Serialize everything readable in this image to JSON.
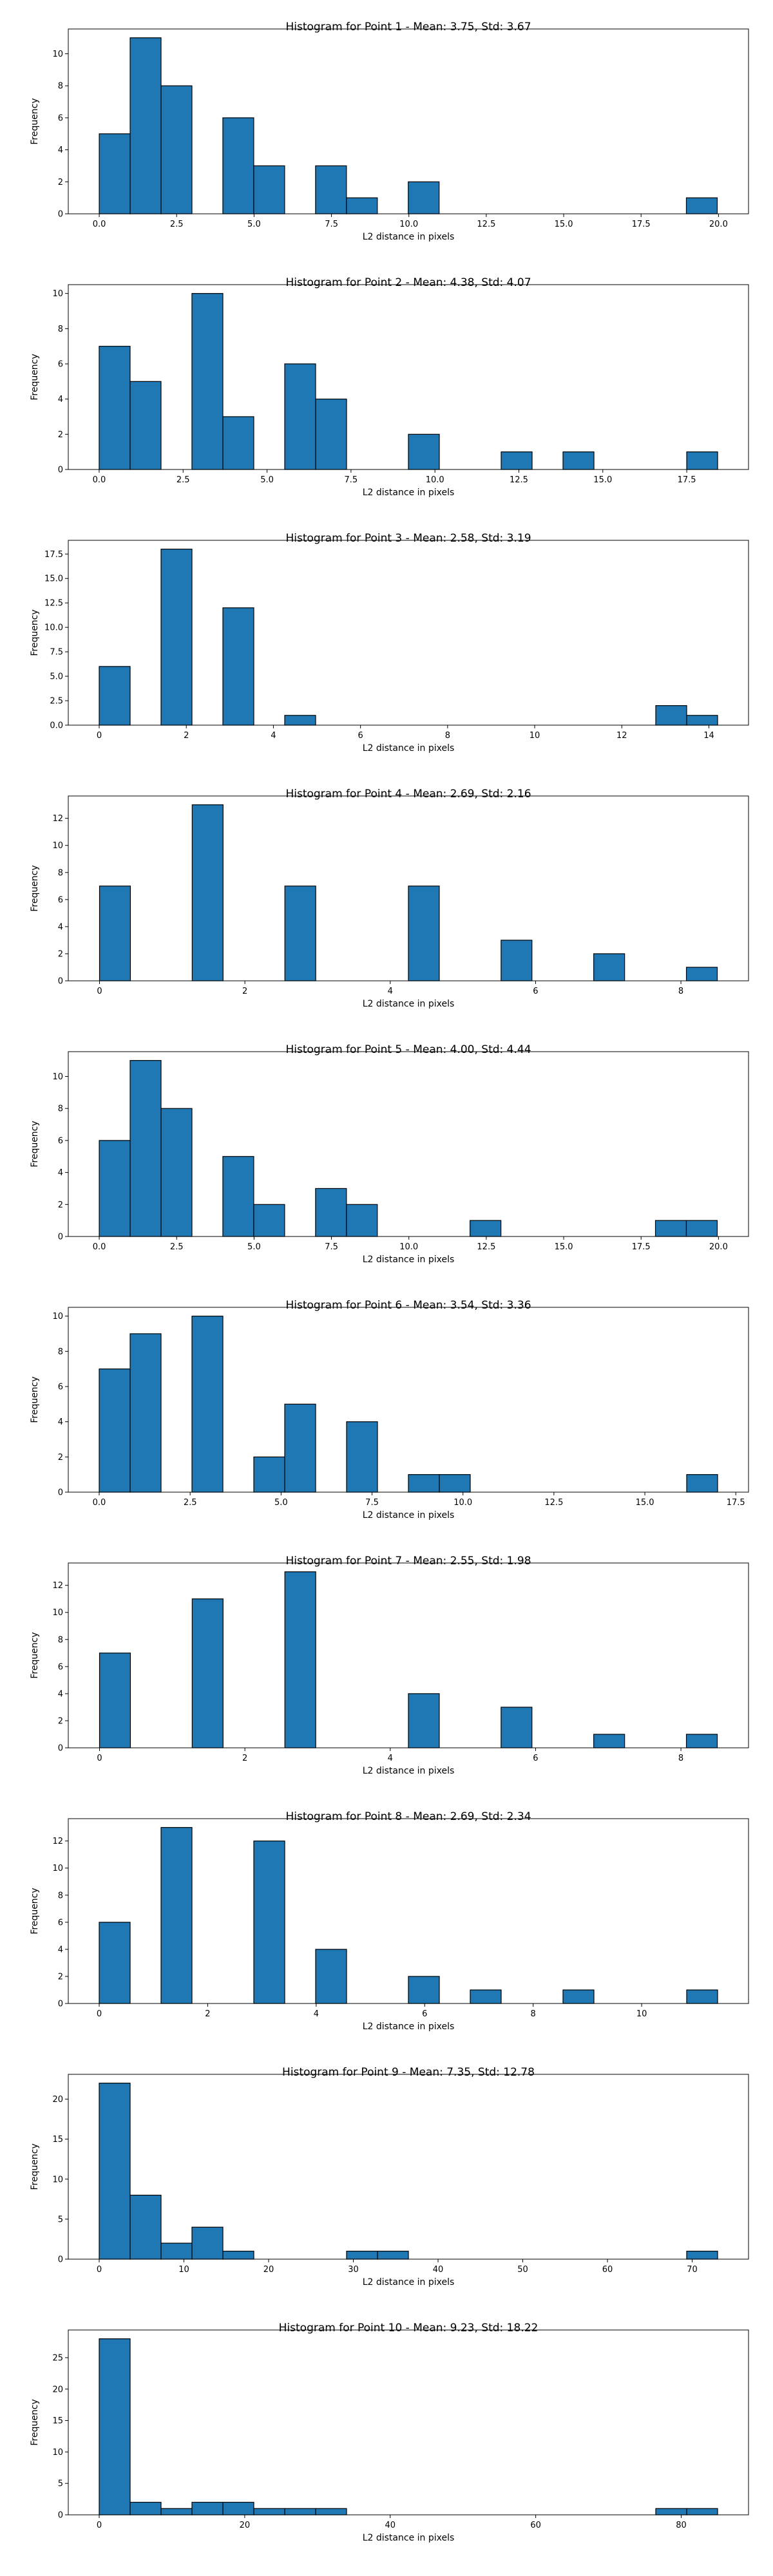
{
  "colors": {
    "bar_fill": "#1f77b4",
    "bar_edge": "#000000",
    "axes": "#000000",
    "background": "#ffffff"
  },
  "chart_data": [
    {
      "type": "bar",
      "title": "Histogram for Point 1 - Mean: 3.75, Std: 3.67",
      "xlabel": "L2 distance in pixels",
      "ylabel": "Frequency",
      "xlim": [
        -1.0,
        20.97
      ],
      "ylim": [
        0,
        11.55
      ],
      "xticks": [
        0.0,
        2.5,
        5.0,
        7.5,
        10.0,
        12.5,
        15.0,
        17.5,
        20.0
      ],
      "xtick_labels": [
        "0.0",
        "2.5",
        "5.0",
        "7.5",
        "10.0",
        "12.5",
        "15.0",
        "17.5",
        "20.0"
      ],
      "yticks": [
        0,
        2,
        4,
        6,
        8,
        10
      ],
      "ytick_labels": [
        "0",
        "2",
        "4",
        "6",
        "8",
        "10"
      ],
      "bin_edges": [
        0.0,
        0.998,
        1.996,
        2.994,
        3.992,
        4.99,
        5.988,
        6.986,
        7.984,
        8.982,
        9.98,
        10.978,
        11.976,
        12.974,
        13.972,
        14.97,
        15.968,
        16.966,
        17.964,
        18.962,
        19.96
      ],
      "values": [
        5,
        11,
        8,
        0,
        6,
        3,
        0,
        3,
        1,
        0,
        2,
        0,
        0,
        0,
        0,
        0,
        0,
        0,
        0,
        1
      ]
    },
    {
      "type": "bar",
      "title": "Histogram for Point 2 - Mean: 4.38, Std: 4.07",
      "xlabel": "L2 distance in pixels",
      "ylabel": "Frequency",
      "xlim": [
        -0.92,
        19.34
      ],
      "ylim": [
        0,
        10.5
      ],
      "xticks": [
        0.0,
        2.5,
        5.0,
        7.5,
        10.0,
        12.5,
        15.0,
        17.5
      ],
      "xtick_labels": [
        "0.0",
        "2.5",
        "5.0",
        "7.5",
        "10.0",
        "12.5",
        "15.0",
        "17.5"
      ],
      "yticks": [
        0,
        2,
        4,
        6,
        8,
        10
      ],
      "ytick_labels": [
        "0",
        "2",
        "4",
        "6",
        "8",
        "10"
      ],
      "bin_edges": [
        0.0,
        0.921,
        1.842,
        2.763,
        3.684,
        4.605,
        5.526,
        6.447,
        7.368,
        8.289,
        9.21,
        10.131,
        11.052,
        11.973,
        12.894,
        13.815,
        14.736,
        15.657,
        16.578,
        17.499,
        18.42
      ],
      "values": [
        7,
        5,
        0,
        10,
        3,
        0,
        6,
        4,
        0,
        0,
        2,
        0,
        0,
        1,
        0,
        1,
        0,
        0,
        0,
        1
      ]
    },
    {
      "type": "bar",
      "title": "Histogram for Point 3 - Mean: 2.58, Std: 3.19",
      "xlabel": "L2 distance in pixels",
      "ylabel": "Frequency",
      "xlim": [
        -0.71,
        14.91
      ],
      "ylim": [
        0,
        18.9
      ],
      "xticks": [
        0,
        2,
        4,
        6,
        8,
        10,
        12,
        14
      ],
      "xtick_labels": [
        "0",
        "2",
        "4",
        "6",
        "8",
        "10",
        "12",
        "14"
      ],
      "yticks": [
        0.0,
        2.5,
        5.0,
        7.5,
        10.0,
        12.5,
        15.0,
        17.5
      ],
      "ytick_labels": [
        "0.0",
        "2.5",
        "5.0",
        "7.5",
        "10.0",
        "12.5",
        "15.0",
        "17.5"
      ],
      "bin_edges": [
        0.0,
        0.71,
        1.42,
        2.13,
        2.84,
        3.55,
        4.26,
        4.97,
        5.68,
        6.39,
        7.1,
        7.81,
        8.52,
        9.23,
        9.94,
        10.65,
        11.36,
        12.07,
        12.78,
        13.49,
        14.2
      ],
      "values": [
        6,
        0,
        18,
        0,
        12,
        0,
        1,
        0,
        0,
        0,
        0,
        0,
        0,
        0,
        0,
        0,
        0,
        0,
        2,
        1
      ]
    },
    {
      "type": "bar",
      "title": "Histogram for Point 4 - Mean: 2.69, Std: 2.16",
      "xlabel": "L2 distance in pixels",
      "ylabel": "Frequency",
      "xlim": [
        -0.43,
        8.93
      ],
      "ylim": [
        0,
        13.65
      ],
      "xticks": [
        0,
        2,
        4,
        6,
        8
      ],
      "xtick_labels": [
        "0",
        "2",
        "4",
        "6",
        "8"
      ],
      "yticks": [
        0,
        2,
        4,
        6,
        8,
        10,
        12
      ],
      "ytick_labels": [
        "0",
        "2",
        "4",
        "6",
        "8",
        "10",
        "12"
      ],
      "bin_edges": [
        0.0,
        0.425,
        0.85,
        1.275,
        1.7,
        2.125,
        2.55,
        2.975,
        3.4,
        3.825,
        4.25,
        4.675,
        5.1,
        5.525,
        5.95,
        6.375,
        6.8,
        7.225,
        7.65,
        8.075,
        8.5
      ],
      "values": [
        7,
        0,
        0,
        13,
        0,
        0,
        7,
        0,
        0,
        0,
        7,
        0,
        0,
        3,
        0,
        0,
        2,
        0,
        0,
        1
      ]
    },
    {
      "type": "bar",
      "title": "Histogram for Point 5 - Mean: 4.00, Std: 4.44",
      "xlabel": "L2 distance in pixels",
      "ylabel": "Frequency",
      "xlim": [
        -1.0,
        20.97
      ],
      "ylim": [
        0,
        11.55
      ],
      "xticks": [
        0.0,
        2.5,
        5.0,
        7.5,
        10.0,
        12.5,
        15.0,
        17.5,
        20.0
      ],
      "xtick_labels": [
        "0.0",
        "2.5",
        "5.0",
        "7.5",
        "10.0",
        "12.5",
        "15.0",
        "17.5",
        "20.0"
      ],
      "yticks": [
        0,
        2,
        4,
        6,
        8,
        10
      ],
      "ytick_labels": [
        "0",
        "2",
        "4",
        "6",
        "8",
        "10"
      ],
      "bin_edges": [
        0.0,
        0.998,
        1.996,
        2.994,
        3.992,
        4.99,
        5.988,
        6.986,
        7.984,
        8.982,
        9.98,
        10.978,
        11.976,
        12.974,
        13.972,
        14.97,
        15.968,
        16.966,
        17.964,
        18.962,
        19.96
      ],
      "values": [
        6,
        11,
        8,
        0,
        5,
        2,
        0,
        3,
        2,
        0,
        0,
        0,
        1,
        0,
        0,
        0,
        0,
        0,
        1,
        1
      ]
    },
    {
      "type": "bar",
      "title": "Histogram for Point 6 - Mean: 3.54, Std: 3.36",
      "xlabel": "L2 distance in pixels",
      "ylabel": "Frequency",
      "xlim": [
        -0.85,
        17.85
      ],
      "ylim": [
        0,
        10.5
      ],
      "xticks": [
        0.0,
        2.5,
        5.0,
        7.5,
        10.0,
        12.5,
        15.0,
        17.5
      ],
      "xtick_labels": [
        "0.0",
        "2.5",
        "5.0",
        "7.5",
        "10.0",
        "12.5",
        "15.0",
        "17.5"
      ],
      "yticks": [
        0,
        2,
        4,
        6,
        8,
        10
      ],
      "ytick_labels": [
        "0",
        "2",
        "4",
        "6",
        "8",
        "10"
      ],
      "bin_edges": [
        0.0,
        0.85,
        1.7,
        2.55,
        3.4,
        4.25,
        5.1,
        5.95,
        6.8,
        7.65,
        8.5,
        9.35,
        10.2,
        11.05,
        11.9,
        12.75,
        13.6,
        14.45,
        15.3,
        16.15,
        17.0
      ],
      "values": [
        7,
        9,
        0,
        10,
        0,
        2,
        5,
        0,
        4,
        0,
        1,
        1,
        0,
        0,
        0,
        0,
        0,
        0,
        0,
        1
      ]
    },
    {
      "type": "bar",
      "title": "Histogram for Point 7 - Mean: 2.55, Std: 1.98",
      "xlabel": "L2 distance in pixels",
      "ylabel": "Frequency",
      "xlim": [
        -0.43,
        8.93
      ],
      "ylim": [
        0,
        13.65
      ],
      "xticks": [
        0,
        2,
        4,
        6,
        8
      ],
      "xtick_labels": [
        "0",
        "2",
        "4",
        "6",
        "8"
      ],
      "yticks": [
        0,
        2,
        4,
        6,
        8,
        10,
        12
      ],
      "ytick_labels": [
        "0",
        "2",
        "4",
        "6",
        "8",
        "10",
        "12"
      ],
      "bin_edges": [
        0.0,
        0.425,
        0.85,
        1.275,
        1.7,
        2.125,
        2.55,
        2.975,
        3.4,
        3.825,
        4.25,
        4.675,
        5.1,
        5.525,
        5.95,
        6.375,
        6.8,
        7.225,
        7.65,
        8.075,
        8.5
      ],
      "values": [
        7,
        0,
        0,
        11,
        0,
        0,
        13,
        0,
        0,
        0,
        4,
        0,
        0,
        3,
        0,
        0,
        1,
        0,
        0,
        1
      ]
    },
    {
      "type": "bar",
      "title": "Histogram for Point 8 - Mean: 2.69, Std: 2.34",
      "xlabel": "L2 distance in pixels",
      "ylabel": "Frequency",
      "xlim": [
        -0.57,
        11.97
      ],
      "ylim": [
        0,
        13.65
      ],
      "xticks": [
        0,
        2,
        4,
        6,
        8,
        10
      ],
      "xtick_labels": [
        "0",
        "2",
        "4",
        "6",
        "8",
        "10"
      ],
      "yticks": [
        0,
        2,
        4,
        6,
        8,
        10,
        12
      ],
      "ytick_labels": [
        "0",
        "2",
        "4",
        "6",
        "8",
        "10",
        "12"
      ],
      "bin_edges": [
        0.0,
        0.57,
        1.14,
        1.71,
        2.28,
        2.85,
        3.42,
        3.99,
        4.56,
        5.13,
        5.7,
        6.27,
        6.84,
        7.41,
        7.98,
        8.55,
        9.12,
        9.69,
        10.26,
        10.83,
        11.4
      ],
      "values": [
        6,
        0,
        13,
        0,
        0,
        12,
        0,
        4,
        0,
        0,
        2,
        0,
        1,
        0,
        0,
        1,
        0,
        0,
        0,
        1
      ]
    },
    {
      "type": "bar",
      "title": "Histogram for Point 9 - Mean: 7.35, Std: 12.78",
      "xlabel": "L2 distance in pixels",
      "ylabel": "Frequency",
      "xlim": [
        -3.65,
        76.65
      ],
      "ylim": [
        0,
        23.1
      ],
      "xticks": [
        0,
        10,
        20,
        30,
        40,
        50,
        60,
        70
      ],
      "xtick_labels": [
        "0",
        "10",
        "20",
        "30",
        "40",
        "50",
        "60",
        "70"
      ],
      "yticks": [
        0,
        5,
        10,
        15,
        20
      ],
      "ytick_labels": [
        "0",
        "5",
        "10",
        "15",
        "20"
      ],
      "bin_edges": [
        0.0,
        3.65,
        7.3,
        10.95,
        14.6,
        18.25,
        21.9,
        25.55,
        29.2,
        32.85,
        36.5,
        40.15,
        43.8,
        47.45,
        51.1,
        54.75,
        58.4,
        62.05,
        65.7,
        69.35,
        73.0
      ],
      "values": [
        22,
        8,
        2,
        4,
        1,
        0,
        0,
        0,
        1,
        1,
        0,
        0,
        0,
        0,
        0,
        0,
        0,
        0,
        0,
        1
      ]
    },
    {
      "type": "bar",
      "title": "Histogram for Point 10 - Mean: 9.23, Std: 18.22",
      "xlabel": "L2 distance in pixels",
      "ylabel": "Frequency",
      "xlim": [
        -4.25,
        89.25
      ],
      "ylim": [
        0,
        29.4
      ],
      "xticks": [
        0,
        20,
        40,
        60,
        80
      ],
      "xtick_labels": [
        "0",
        "20",
        "40",
        "60",
        "80"
      ],
      "yticks": [
        0,
        5,
        10,
        15,
        20,
        25
      ],
      "ytick_labels": [
        "0",
        "5",
        "10",
        "15",
        "20",
        "25"
      ],
      "bin_edges": [
        0.0,
        4.25,
        8.5,
        12.75,
        17.0,
        21.25,
        25.5,
        29.75,
        34.0,
        38.25,
        42.5,
        46.75,
        51.0,
        55.25,
        59.5,
        63.75,
        68.0,
        72.25,
        76.5,
        80.75,
        85.0
      ],
      "values": [
        28,
        2,
        1,
        2,
        2,
        1,
        1,
        1,
        0,
        0,
        0,
        0,
        0,
        0,
        0,
        0,
        0,
        0,
        1,
        1
      ]
    }
  ]
}
